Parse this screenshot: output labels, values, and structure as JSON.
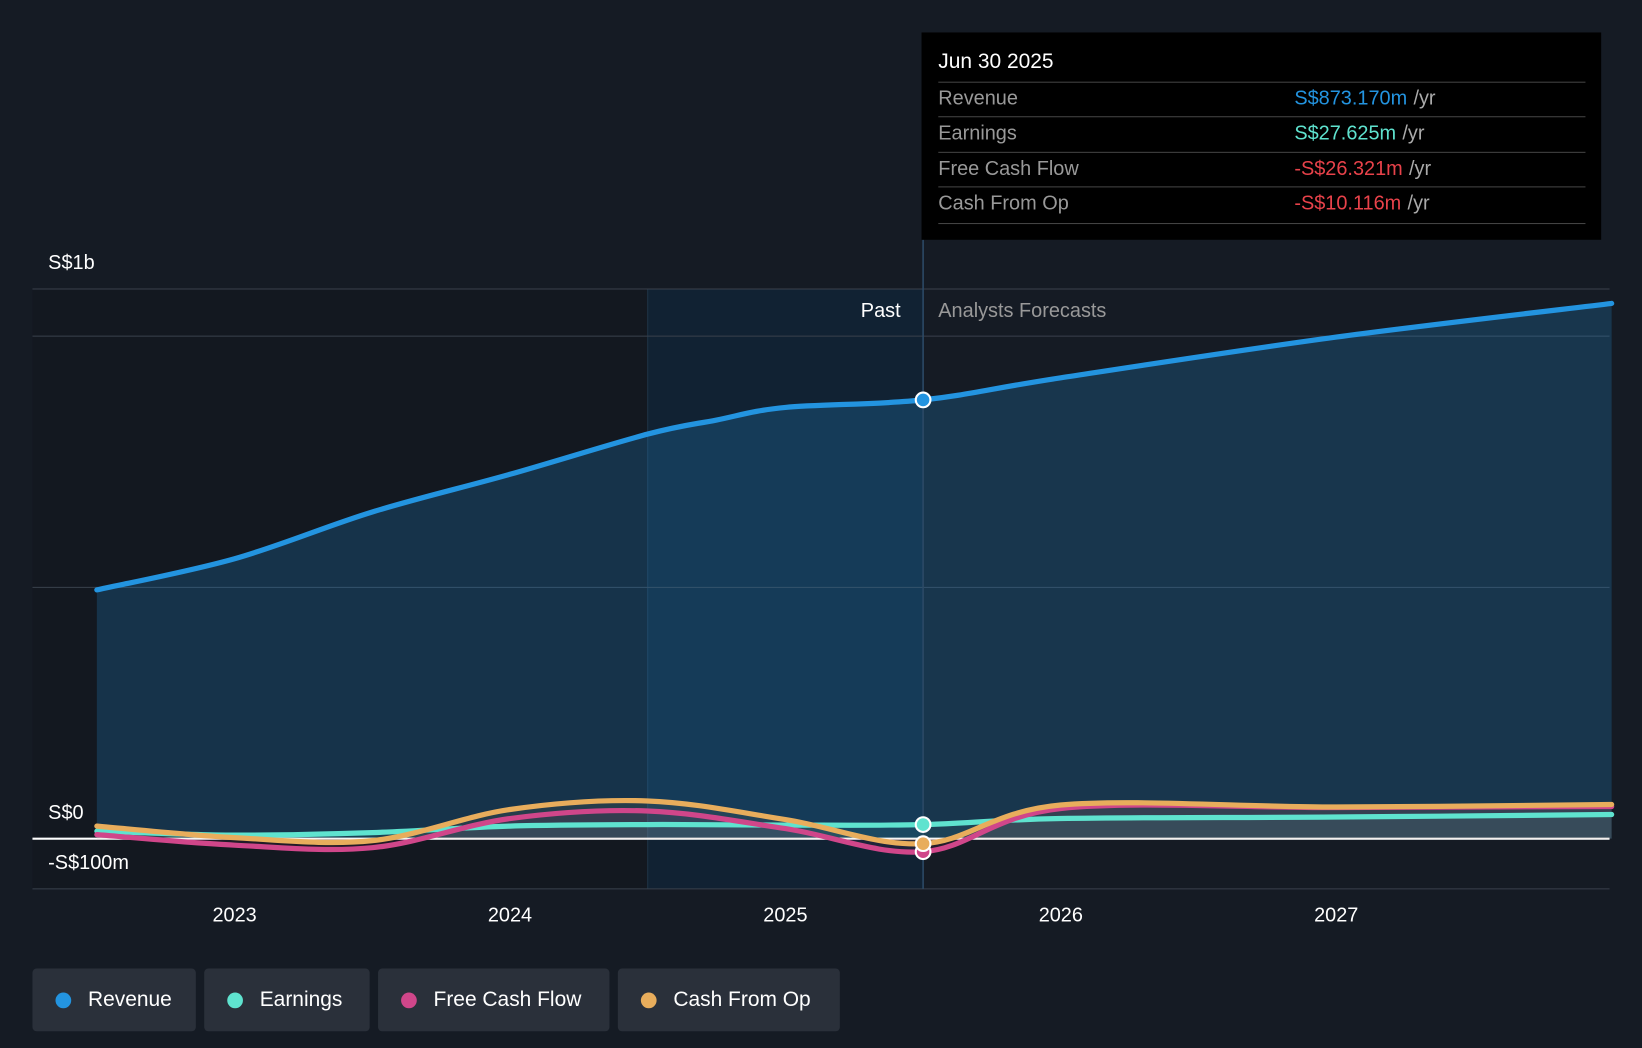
{
  "tooltip": {
    "date": "Jun 30 2025",
    "rows": [
      {
        "label": "Revenue",
        "value": "S$873.170m",
        "unit": "/yr",
        "color": "#2394e0"
      },
      {
        "label": "Earnings",
        "value": "S$27.625m",
        "unit": "/yr",
        "color": "#5fe3cf"
      },
      {
        "label": "Free Cash Flow",
        "value": "-S$26.321m",
        "unit": "/yr",
        "color": "#e8424a"
      },
      {
        "label": "Cash From Op",
        "value": "-S$10.116m",
        "unit": "/yr",
        "color": "#e8424a"
      }
    ]
  },
  "labels": {
    "past": "Past",
    "forecast": "Analysts Forecasts"
  },
  "chart_data": {
    "type": "line",
    "y_tick_labels": [
      "S$1b",
      "S$0",
      "-S$100m"
    ],
    "x_tick_labels": [
      "2023",
      "2024",
      "2025",
      "2026",
      "2027"
    ],
    "xlim": [
      2022.5,
      2028
    ],
    "ylim": [
      -100,
      1100
    ],
    "past_forecast_split": 2025.5,
    "highlight_start": 2024.5,
    "series": [
      {
        "name": "Revenue",
        "color": "#2394e0",
        "x": [
          2022.5,
          2023,
          2023.5,
          2024,
          2024.5,
          2024.75,
          2025,
          2025.5,
          2026,
          2027,
          2028
        ],
        "values": [
          495,
          557,
          650,
          725,
          805,
          833,
          858,
          873,
          917,
          998,
          1065
        ]
      },
      {
        "name": "Earnings",
        "color": "#5fe3cf",
        "x": [
          2022.5,
          2023,
          2023.5,
          2024,
          2024.5,
          2025,
          2025.5,
          2026,
          2027,
          2028
        ],
        "values": [
          15,
          7,
          12,
          25,
          28,
          27,
          28,
          40,
          43,
          48
        ]
      },
      {
        "name": "Free Cash Flow",
        "color": "#d0468a",
        "x": [
          2022.5,
          2023,
          2023.5,
          2024,
          2024.5,
          2025,
          2025.5,
          2026,
          2027,
          2028
        ],
        "values": [
          8,
          -13,
          -18,
          40,
          55,
          20,
          -26,
          60,
          62,
          64
        ]
      },
      {
        "name": "Cash From Op",
        "color": "#e8ad5c",
        "x": [
          2022.5,
          2023,
          2023.5,
          2024,
          2024.5,
          2025,
          2025.5,
          2026,
          2027,
          2028
        ],
        "values": [
          25,
          2,
          -4,
          58,
          75,
          38,
          -10,
          67,
          63,
          68
        ]
      }
    ]
  }
}
